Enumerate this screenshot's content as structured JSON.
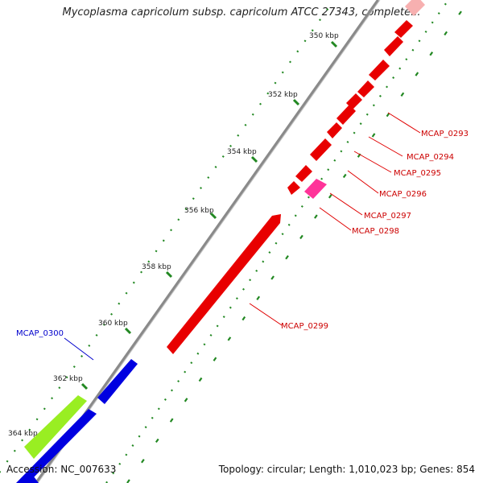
{
  "title": "Mycoplasma capricolum subsp. capricolum ATCC 27343, complete...",
  "footer": {
    "accession_label": "Accession:",
    "accession": "NC_007633",
    "topology_label": "Topology:",
    "topology": "circular",
    "length_label": "Length:",
    "length": "1,010,023 bp",
    "genes_label": "Genes:",
    "genes": "854"
  },
  "colors": {
    "forward_cds": "#e80000",
    "forward_highlight": "#ff3399",
    "reverse_cds": "#0000e0",
    "reverse_other": "#99ee22",
    "ruler_line": "#7a7a7a",
    "tick_dots": "#228822",
    "forward_label": "#cc0000",
    "reverse_label": "#0000cc"
  },
  "ruler_ticks": [
    "350 kbp",
    "352 kbp",
    "354 kbp",
    "356 kbp",
    "358 kbp",
    "360 kbp",
    "362 kbp",
    "364 kbp"
  ],
  "genes": [
    {
      "label": "MCAP_0293",
      "strand": "forward"
    },
    {
      "label": "MCAP_0294",
      "strand": "forward"
    },
    {
      "label": "MCAP_0295",
      "strand": "forward"
    },
    {
      "label": "MCAP_0296",
      "strand": "forward"
    },
    {
      "label": "MCAP_0297",
      "strand": "forward"
    },
    {
      "label": "MCAP_0298",
      "strand": "forward"
    },
    {
      "label": "MCAP_0299",
      "strand": "forward"
    },
    {
      "label": "MCAP_0300",
      "strand": "reverse"
    }
  ]
}
